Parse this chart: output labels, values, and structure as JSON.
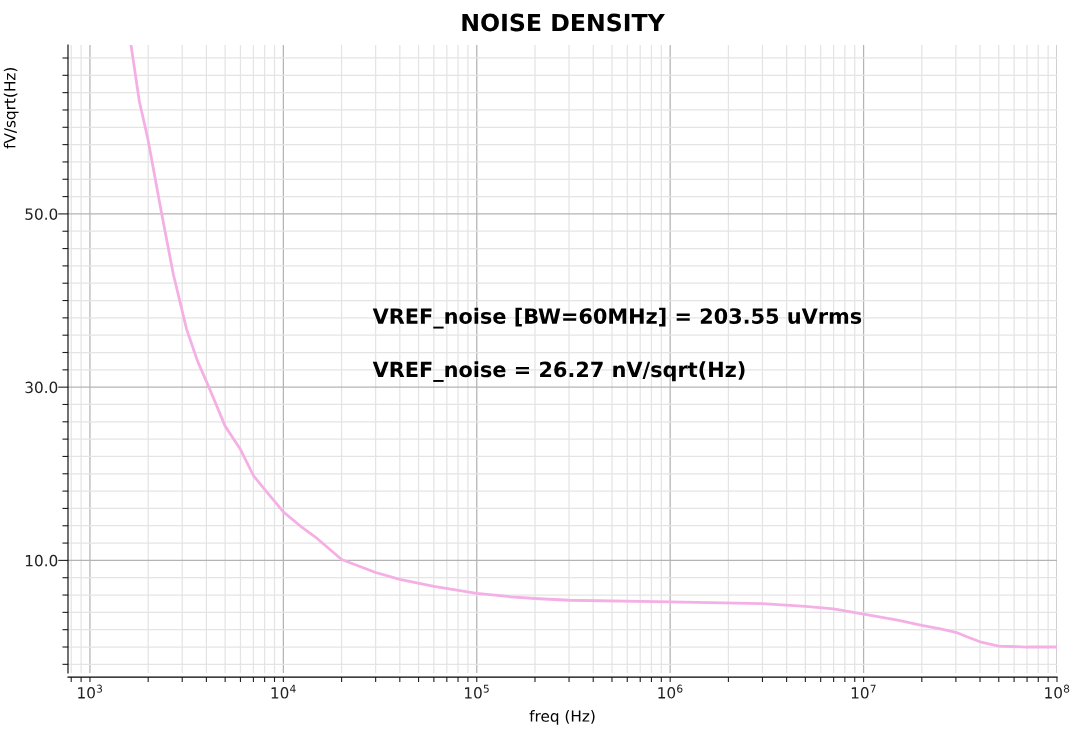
{
  "chart_data": {
    "type": "line",
    "title": "NOISE DENSITY",
    "xlabel": "freq (Hz)",
    "ylabel": "fV/sqrt(Hz)",
    "log": "x",
    "grid": true,
    "legend": false,
    "marker": "none",
    "line_style": "solid",
    "annotations": [
      "VREF_noise [BW=60MHz] = 203.55 uVrms",
      "VREF_noise = 26.27 nV/sqrt(Hz)"
    ],
    "x": [
      1630,
      1800,
      1995,
      2350,
      2700,
      3160,
      3600,
      4120,
      5000,
      5970,
      7000,
      8200,
      10000,
      12500,
      15000,
      20000,
      30000,
      40000,
      60000,
      100000,
      150000,
      200000,
      300000,
      1000000,
      3000000,
      5000000,
      7000000,
      10000000,
      15000000,
      20000000,
      25000000,
      30000000,
      35000000,
      40000000,
      50000000,
      70000000,
      100000000
    ],
    "series": [
      {
        "color": "#f4b0e4",
        "values": [
          69.5,
          63.0,
          58.6,
          50.0,
          43.0,
          36.7,
          33.0,
          30.0,
          25.5,
          22.9,
          19.8,
          17.9,
          15.6,
          13.8,
          12.5,
          10.1,
          8.6,
          7.8,
          7.0,
          6.2,
          5.8,
          5.6,
          5.4,
          5.2,
          5.0,
          4.7,
          4.4,
          3.8,
          3.1,
          2.5,
          2.1,
          1.7,
          1.1,
          0.6,
          0.1,
          0.0,
          0.0
        ]
      }
    ],
    "xlim": [
      770,
      100000000
    ],
    "ylim": [
      -3,
      69.5
    ],
    "xticks": [
      {
        "value": 800,
        "label": null
      },
      {
        "value": 900,
        "label": null
      },
      {
        "value": 1000,
        "label": "10$^{3}$"
      },
      {
        "value": 2000,
        "label": null
      },
      {
        "value": 3000,
        "label": null
      },
      {
        "value": 4000,
        "label": null
      },
      {
        "value": 5000,
        "label": null
      },
      {
        "value": 6000,
        "label": null
      },
      {
        "value": 7000,
        "label": null
      },
      {
        "value": 8000,
        "label": null
      },
      {
        "value": 9000,
        "label": null
      },
      {
        "value": 10000,
        "label": "10$^{4}$"
      },
      {
        "value": 20000,
        "label": null
      },
      {
        "value": 30000,
        "label": null
      },
      {
        "value": 40000,
        "label": null
      },
      {
        "value": 50000,
        "label": null
      },
      {
        "value": 60000,
        "label": null
      },
      {
        "value": 70000,
        "label": null
      },
      {
        "value": 80000,
        "label": null
      },
      {
        "value": 90000,
        "label": null
      },
      {
        "value": 100000,
        "label": "10$^{5}$"
      },
      {
        "value": 200000,
        "label": null
      },
      {
        "value": 300000,
        "label": null
      },
      {
        "value": 400000,
        "label": null
      },
      {
        "value": 500000,
        "label": null
      },
      {
        "value": 600000,
        "label": null
      },
      {
        "value": 700000,
        "label": null
      },
      {
        "value": 800000,
        "label": null
      },
      {
        "value": 900000,
        "label": null
      },
      {
        "value": 1000000,
        "label": "10$^{6}$"
      },
      {
        "value": 2000000,
        "label": null
      },
      {
        "value": 3000000,
        "label": null
      },
      {
        "value": 4000000,
        "label": null
      },
      {
        "value": 5000000,
        "label": null
      },
      {
        "value": 6000000,
        "label": null
      },
      {
        "value": 7000000,
        "label": null
      },
      {
        "value": 8000000,
        "label": null
      },
      {
        "value": 9000000,
        "label": null
      },
      {
        "value": 10000000,
        "label": "10$^{7}$"
      },
      {
        "value": 20000000,
        "label": null
      },
      {
        "value": 30000000,
        "label": null
      },
      {
        "value": 40000000,
        "label": null
      },
      {
        "value": 50000000,
        "label": null
      },
      {
        "value": 60000000,
        "label": null
      },
      {
        "value": 70000000,
        "label": null
      },
      {
        "value": 80000000,
        "label": null
      },
      {
        "value": 90000000,
        "label": null
      },
      {
        "value": 100000000,
        "label": "10$^{8}$"
      }
    ],
    "yticks": [
      {
        "value": -2,
        "label": null
      },
      {
        "value": 0,
        "label": null
      },
      {
        "value": 2,
        "label": null
      },
      {
        "value": 4,
        "label": null
      },
      {
        "value": 6,
        "label": null
      },
      {
        "value": 8,
        "label": null
      },
      {
        "value": 10,
        "label": "10.0"
      },
      {
        "value": 12,
        "label": null
      },
      {
        "value": 14,
        "label": null
      },
      {
        "value": 16,
        "label": null
      },
      {
        "value": 18,
        "label": null
      },
      {
        "value": 20,
        "label": null
      },
      {
        "value": 22,
        "label": null
      },
      {
        "value": 24,
        "label": null
      },
      {
        "value": 26,
        "label": null
      },
      {
        "value": 28,
        "label": null
      },
      {
        "value": 30,
        "label": "30.0"
      },
      {
        "value": 32,
        "label": null
      },
      {
        "value": 34,
        "label": null
      },
      {
        "value": 36,
        "label": null
      },
      {
        "value": 38,
        "label": null
      },
      {
        "value": 40,
        "label": null
      },
      {
        "value": 42,
        "label": null
      },
      {
        "value": 44,
        "label": null
      },
      {
        "value": 46,
        "label": null
      },
      {
        "value": 48,
        "label": null
      },
      {
        "value": 50,
        "label": "50.0"
      },
      {
        "value": 52,
        "label": null
      },
      {
        "value": 54,
        "label": null
      },
      {
        "value": 56,
        "label": null
      },
      {
        "value": 58,
        "label": null
      },
      {
        "value": 60,
        "label": null
      },
      {
        "value": 62,
        "label": null
      },
      {
        "value": 64,
        "label": null
      },
      {
        "value": 66,
        "label": null
      },
      {
        "value": 68,
        "label": null
      }
    ]
  }
}
